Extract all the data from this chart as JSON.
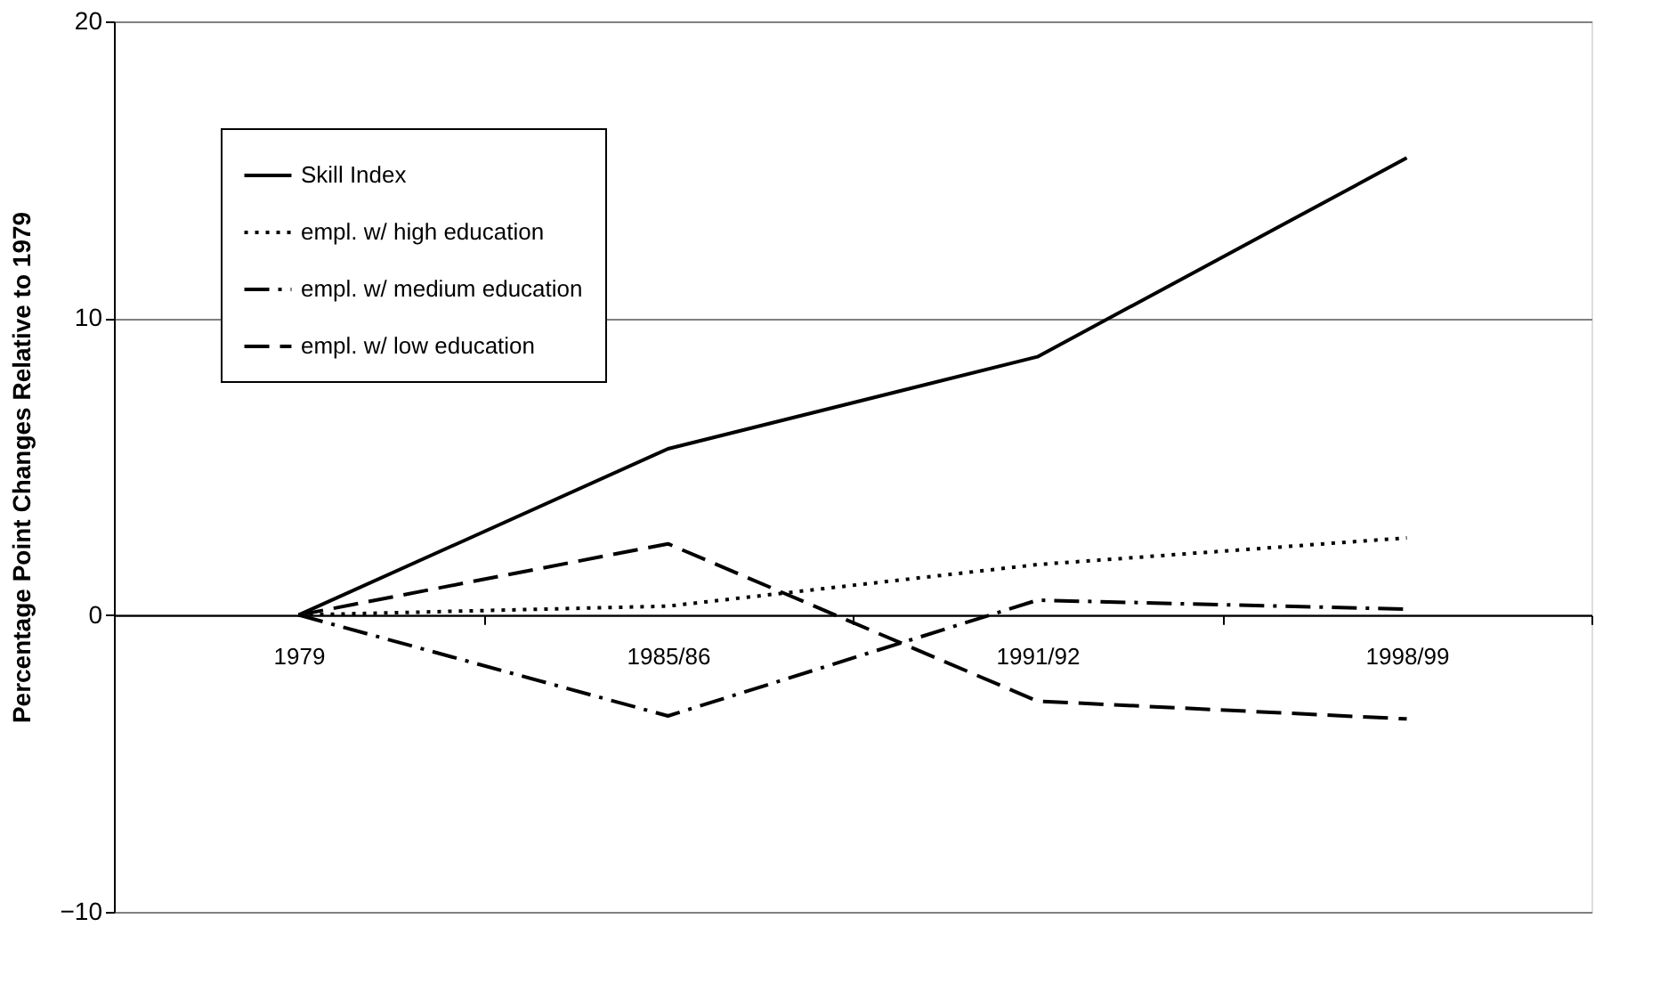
{
  "chart_data": {
    "type": "line",
    "ylabel": "Percentage Point Changes Relative to 1979",
    "categories": [
      "1979",
      "1985/86",
      "1991/92",
      "1998/99"
    ],
    "series": [
      {
        "name": "Skill Index",
        "color": "#000000",
        "line_style": "solid",
        "values": [
          0,
          5.6,
          8.7,
          15.4
        ]
      },
      {
        "name": "empl. w/ high education",
        "color": "#000000",
        "line_style": "dotted",
        "values": [
          0,
          0.3,
          1.7,
          2.6
        ]
      },
      {
        "name": "empl. w/ medium education",
        "color": "#000000",
        "line_style": "dashdot",
        "values": [
          0,
          -3.4,
          0.5,
          0.2
        ]
      },
      {
        "name": "empl. w/ low education",
        "color": "#000000",
        "line_style": "dashed",
        "values": [
          0,
          2.4,
          -2.9,
          -3.5
        ]
      }
    ],
    "ylim": [
      -10,
      20
    ],
    "yticks": [
      -10,
      0,
      10,
      20
    ],
    "grid": "y",
    "legend": "top left",
    "marker": "none"
  }
}
